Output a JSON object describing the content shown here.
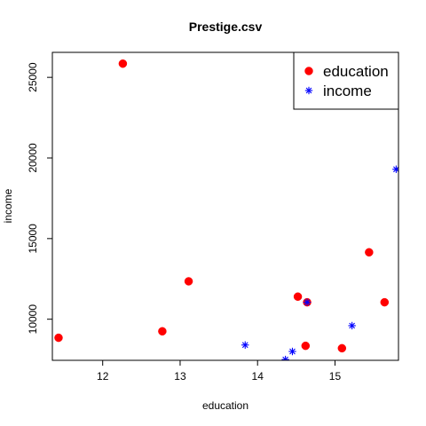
{
  "chart_data": {
    "type": "scatter",
    "title": "Prestige.csv",
    "xlabel": "education",
    "ylabel": "income",
    "xlim": [
      11.35,
      15.82
    ],
    "ylim": [
      7450,
      26550
    ],
    "xticks": [
      12,
      13,
      14,
      15
    ],
    "yticks": [
      10000,
      15000,
      20000,
      25000
    ],
    "grid": false,
    "legend_position": "top-right",
    "series": [
      {
        "name": "education",
        "marker": "filled-circle",
        "color": "#ff0000",
        "points": [
          {
            "x": 11.43,
            "y": 8850
          },
          {
            "x": 12.26,
            "y": 25850
          },
          {
            "x": 12.77,
            "y": 9250
          },
          {
            "x": 13.11,
            "y": 12350
          },
          {
            "x": 14.52,
            "y": 11400
          },
          {
            "x": 14.62,
            "y": 8350
          },
          {
            "x": 14.64,
            "y": 11050
          },
          {
            "x": 15.09,
            "y": 8200
          },
          {
            "x": 15.44,
            "y": 14150
          },
          {
            "x": 15.64,
            "y": 11050
          }
        ]
      },
      {
        "name": "income",
        "marker": "asterisk",
        "color": "#0000ff",
        "points": [
          {
            "x": 13.84,
            "y": 8400
          },
          {
            "x": 14.36,
            "y": 7500
          },
          {
            "x": 14.45,
            "y": 8000
          },
          {
            "x": 14.64,
            "y": 11050
          },
          {
            "x": 15.22,
            "y": 9600
          },
          {
            "x": 15.79,
            "y": 19300
          }
        ]
      }
    ]
  }
}
